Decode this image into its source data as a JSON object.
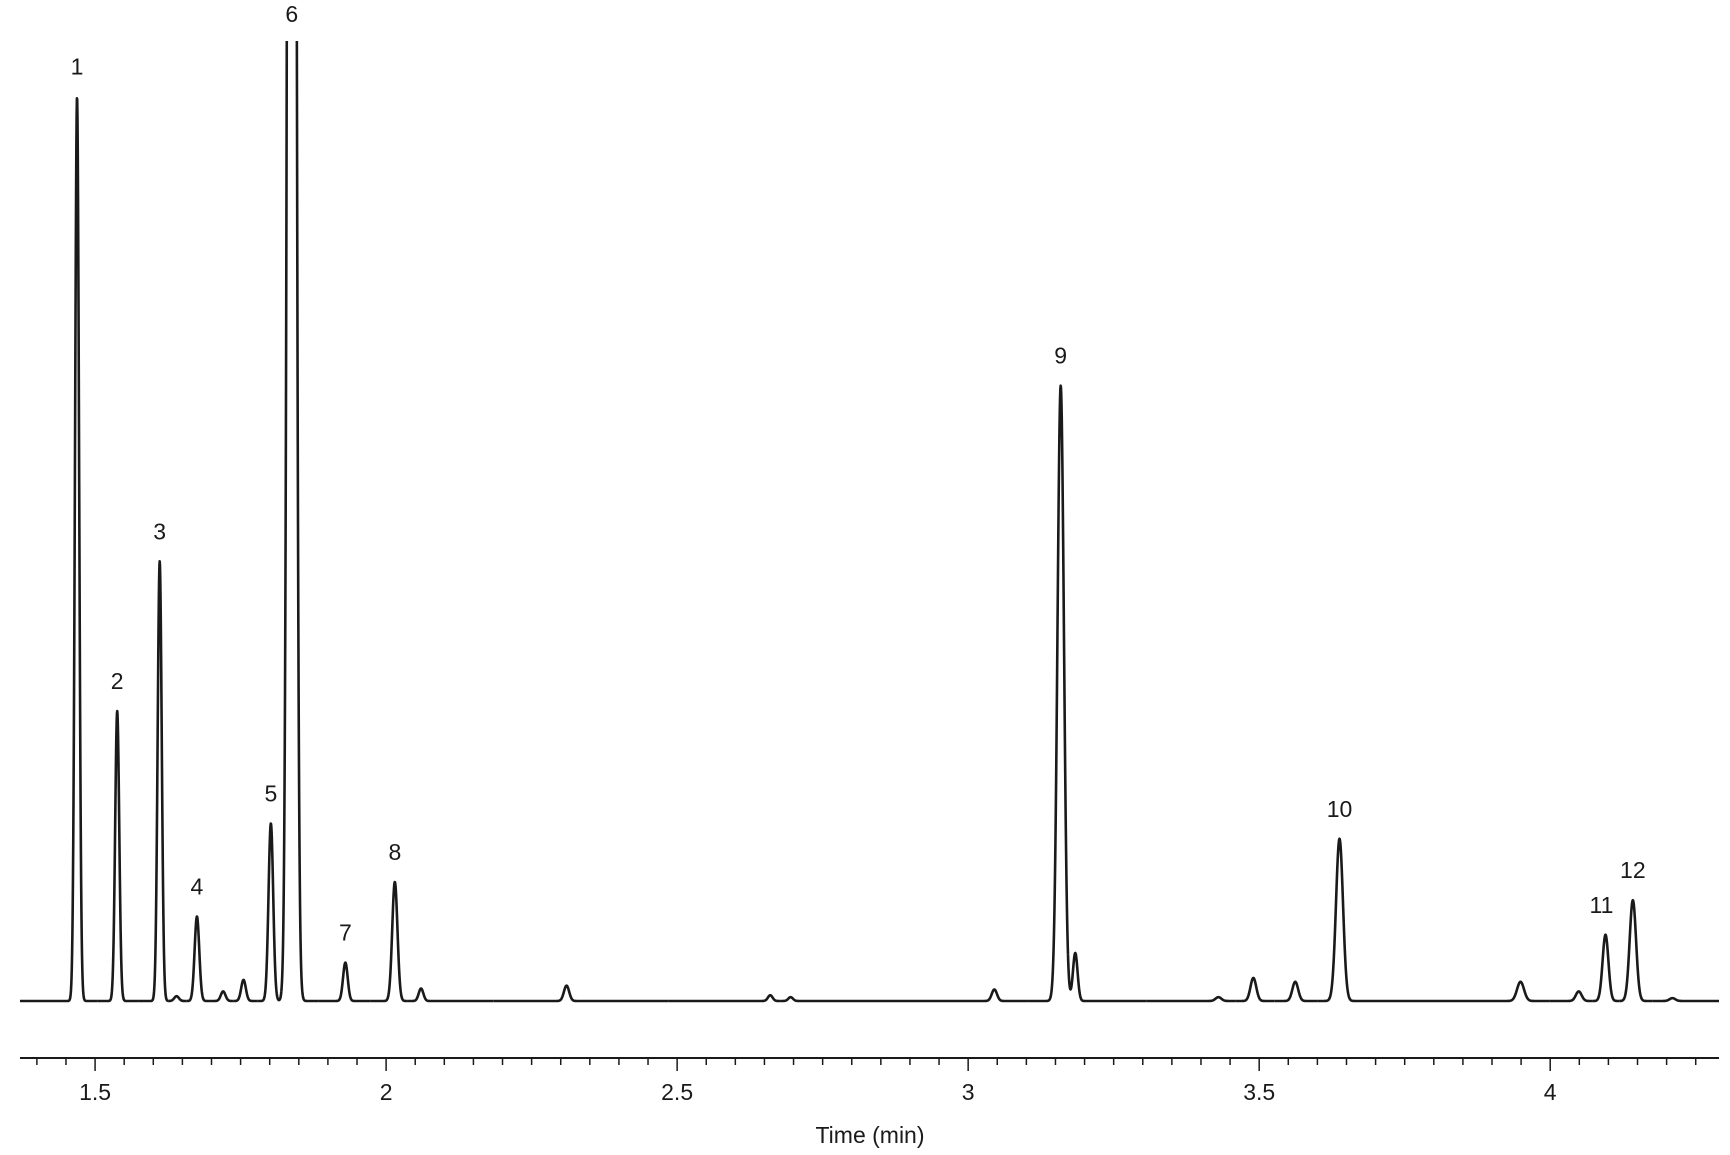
{
  "chart_data": {
    "type": "chromatogram",
    "x_label": "Time (min)",
    "xlim": [
      1.371,
      4.29
    ],
    "xticks": [
      1.5,
      2,
      2.5,
      3,
      3.5,
      4
    ],
    "minor_xticks": [
      1.4,
      1.45,
      1.55,
      1.6,
      1.65,
      1.7,
      1.75,
      1.8,
      1.85,
      1.9,
      1.95,
      2.05,
      2.1,
      2.15,
      2.2,
      2.25,
      2.3,
      2.35,
      2.4,
      2.45,
      2.55,
      2.6,
      2.65,
      2.7,
      2.75,
      2.8,
      2.85,
      2.9,
      2.95,
      3.05,
      3.1,
      3.15,
      3.2,
      3.25,
      3.3,
      3.35,
      3.4,
      3.45,
      3.55,
      3.6,
      3.65,
      3.7,
      3.75,
      3.8,
      3.85,
      3.9,
      3.95,
      4.05,
      4.1,
      4.15,
      4.2,
      4.25
    ],
    "ylim": [
      0,
      100
    ],
    "color": "#1a1a1a",
    "peaks": [
      {
        "label": "1",
        "x": 1.469,
        "height": 94.2,
        "width": 0.0035
      },
      {
        "label": "2",
        "x": 1.538,
        "height": 30.2,
        "width": 0.0035
      },
      {
        "label": "3",
        "x": 1.611,
        "height": 45.8,
        "width": 0.0035
      },
      {
        "label": null,
        "x": 1.64,
        "height": 0.5,
        "width": 0.004
      },
      {
        "label": "4",
        "x": 1.675,
        "height": 8.8,
        "width": 0.004
      },
      {
        "label": null,
        "x": 1.72,
        "height": 1.0,
        "width": 0.004
      },
      {
        "label": null,
        "x": 1.755,
        "height": 2.2,
        "width": 0.004
      },
      {
        "label": "5",
        "x": 1.802,
        "height": 18.5,
        "width": 0.004
      },
      {
        "label": "6",
        "x": 1.838,
        "height": 400,
        "width": 0.0052
      },
      {
        "label": "7",
        "x": 1.93,
        "height": 4.0,
        "width": 0.004
      },
      {
        "label": "8",
        "x": 2.015,
        "height": 12.4,
        "width": 0.0045
      },
      {
        "label": null,
        "x": 2.06,
        "height": 1.3,
        "width": 0.004
      },
      {
        "label": null,
        "x": 2.31,
        "height": 1.6,
        "width": 0.0045
      },
      {
        "label": null,
        "x": 2.66,
        "height": 0.6,
        "width": 0.004
      },
      {
        "label": null,
        "x": 2.695,
        "height": 0.4,
        "width": 0.004
      },
      {
        "label": null,
        "x": 3.045,
        "height": 1.2,
        "width": 0.0045
      },
      {
        "label": "9",
        "x": 3.159,
        "height": 64.1,
        "width": 0.0055
      },
      {
        "label": null,
        "x": 3.184,
        "height": 5.0,
        "width": 0.004
      },
      {
        "label": null,
        "x": 3.43,
        "height": 0.4,
        "width": 0.005
      },
      {
        "label": null,
        "x": 3.49,
        "height": 2.4,
        "width": 0.005
      },
      {
        "label": null,
        "x": 3.562,
        "height": 2.0,
        "width": 0.005
      },
      {
        "label": "10",
        "x": 3.638,
        "height": 16.9,
        "width": 0.006
      },
      {
        "label": null,
        "x": 3.949,
        "height": 2.0,
        "width": 0.006
      },
      {
        "label": null,
        "x": 4.049,
        "height": 1.0,
        "width": 0.005
      },
      {
        "label": "11",
        "x": 4.095,
        "height": 6.9,
        "width": 0.005
      },
      {
        "label": "12",
        "x": 4.142,
        "height": 10.5,
        "width": 0.0055
      },
      {
        "label": null,
        "x": 4.21,
        "height": 0.3,
        "width": 0.005
      }
    ]
  }
}
